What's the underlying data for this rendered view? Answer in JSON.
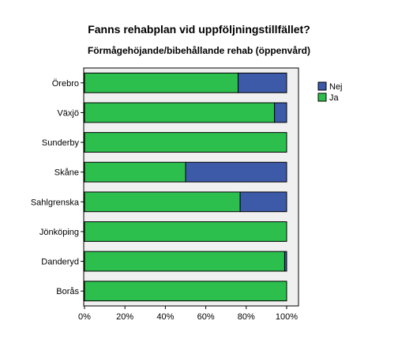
{
  "chart_data": {
    "type": "bar",
    "orientation": "horizontal",
    "stacked": true,
    "title": "Fanns rehabplan vid uppföljningstillfället?",
    "subtitle": "Förmågehöjande/bibehållande rehab (öppenvård)",
    "categories": [
      "Örebro",
      "Växjö",
      "Sunderby",
      "Skåne",
      "Sahlgrenska",
      "Jönköping",
      "Danderyd",
      "Borås"
    ],
    "series": [
      {
        "name": "Ja",
        "color": "#2dbf4e",
        "values": [
          76,
          94,
          100,
          50,
          77,
          100,
          99,
          100
        ]
      },
      {
        "name": "Nej",
        "color": "#3d5aa8",
        "values": [
          24,
          6,
          0,
          50,
          23,
          0,
          1,
          0
        ]
      }
    ],
    "xlim": [
      0,
      100
    ],
    "xticks": [
      "0%",
      "20%",
      "40%",
      "60%",
      "80%",
      "100%"
    ],
    "xlabel": "",
    "ylabel": "",
    "grid": false,
    "legend": {
      "position": "right",
      "entries": [
        "Nej",
        "Ja"
      ]
    },
    "plot_background": "#f0f0f0"
  }
}
